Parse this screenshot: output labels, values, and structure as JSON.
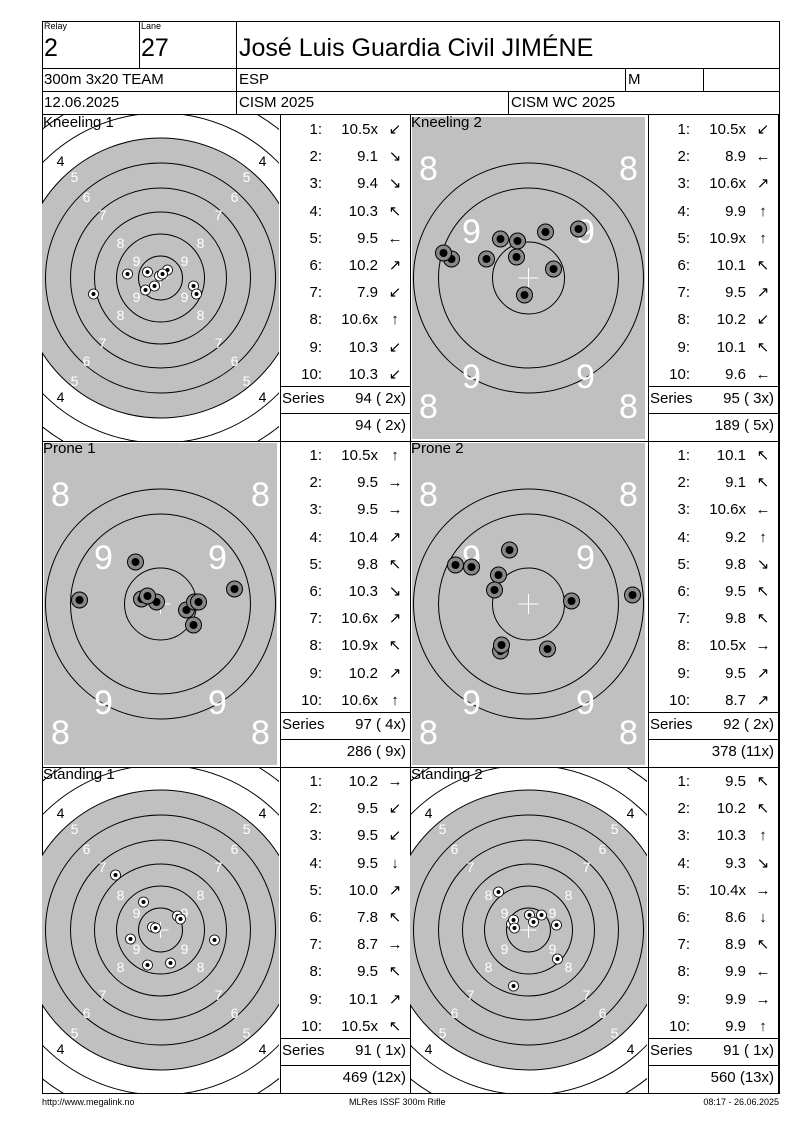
{
  "header": {
    "relay_label": "Relay",
    "relay": "2",
    "lane_label": "Lane",
    "lane": "27",
    "name": "José Luis Guardia Civil JIMÉNE",
    "event": "300m 3x20 TEAM",
    "nation": "ESP",
    "gender": "M",
    "date": "12.06.2025",
    "competition": "CISM 2025",
    "match": "CISM WC 2025"
  },
  "series_label": "Series",
  "panels": [
    {
      "title": "Kneeling 1",
      "shots": [
        {
          "no": "1:",
          "val": "10.5x",
          "arrow": "↙"
        },
        {
          "no": "2:",
          "val": "9.1",
          "arrow": "↘"
        },
        {
          "no": "3:",
          "val": "9.4",
          "arrow": "↘"
        },
        {
          "no": "4:",
          "val": "10.3",
          "arrow": "↖"
        },
        {
          "no": "5:",
          "val": "9.5",
          "arrow": "←"
        },
        {
          "no": "6:",
          "val": "10.2",
          "arrow": "↗"
        },
        {
          "no": "7:",
          "val": "7.9",
          "arrow": "↙"
        },
        {
          "no": "8:",
          "val": "10.6x",
          "arrow": "↑"
        },
        {
          "no": "9:",
          "val": "10.3",
          "arrow": "↙"
        },
        {
          "no": "10:",
          "val": "10.3",
          "arrow": "↙"
        }
      ],
      "series": "94 ( 2x)",
      "total": "94 ( 2x)"
    },
    {
      "title": "Kneeling 2",
      "shots": [
        {
          "no": "1:",
          "val": "10.5x",
          "arrow": "↙"
        },
        {
          "no": "2:",
          "val": "8.9",
          "arrow": "←"
        },
        {
          "no": "3:",
          "val": "10.6x",
          "arrow": "↗"
        },
        {
          "no": "4:",
          "val": "9.9",
          "arrow": "↑"
        },
        {
          "no": "5:",
          "val": "10.9x",
          "arrow": "↑"
        },
        {
          "no": "6:",
          "val": "10.1",
          "arrow": "↖"
        },
        {
          "no": "7:",
          "val": "9.5",
          "arrow": "↗"
        },
        {
          "no": "8:",
          "val": "10.2",
          "arrow": "↙"
        },
        {
          "no": "9:",
          "val": "10.1",
          "arrow": "↖"
        },
        {
          "no": "10:",
          "val": "9.6",
          "arrow": "←"
        }
      ],
      "series": "95 ( 3x)",
      "total": "189 ( 5x)"
    },
    {
      "title": "Prone 1",
      "shots": [
        {
          "no": "1:",
          "val": "10.5x",
          "arrow": "↑"
        },
        {
          "no": "2:",
          "val": "9.5",
          "arrow": "→"
        },
        {
          "no": "3:",
          "val": "9.5",
          "arrow": "→"
        },
        {
          "no": "4:",
          "val": "10.4",
          "arrow": "↗"
        },
        {
          "no": "5:",
          "val": "9.8",
          "arrow": "↖"
        },
        {
          "no": "6:",
          "val": "10.3",
          "arrow": "↘"
        },
        {
          "no": "7:",
          "val": "10.6x",
          "arrow": "↗"
        },
        {
          "no": "8:",
          "val": "10.9x",
          "arrow": "↖"
        },
        {
          "no": "9:",
          "val": "10.2",
          "arrow": "↗"
        },
        {
          "no": "10:",
          "val": "10.6x",
          "arrow": "↑"
        }
      ],
      "series": "97 ( 4x)",
      "total": "286 ( 9x)"
    },
    {
      "title": "Prone 2",
      "shots": [
        {
          "no": "1:",
          "val": "10.1",
          "arrow": "↖"
        },
        {
          "no": "2:",
          "val": "9.1",
          "arrow": "↖"
        },
        {
          "no": "3:",
          "val": "10.6x",
          "arrow": "←"
        },
        {
          "no": "4:",
          "val": "9.2",
          "arrow": "↑"
        },
        {
          "no": "5:",
          "val": "9.8",
          "arrow": "↘"
        },
        {
          "no": "6:",
          "val": "9.5",
          "arrow": "↖"
        },
        {
          "no": "7:",
          "val": "9.8",
          "arrow": "↖"
        },
        {
          "no": "8:",
          "val": "10.5x",
          "arrow": "→"
        },
        {
          "no": "9:",
          "val": "9.5",
          "arrow": "↗"
        },
        {
          "no": "10:",
          "val": "8.7",
          "arrow": "↗"
        }
      ],
      "series": "92 ( 2x)",
      "total": "378 (11x)"
    },
    {
      "title": "Standing 1",
      "shots": [
        {
          "no": "1:",
          "val": "10.2",
          "arrow": "→"
        },
        {
          "no": "2:",
          "val": "9.5",
          "arrow": "↙"
        },
        {
          "no": "3:",
          "val": "9.5",
          "arrow": "↙"
        },
        {
          "no": "4:",
          "val": "9.5",
          "arrow": "↓"
        },
        {
          "no": "5:",
          "val": "10.0",
          "arrow": "↗"
        },
        {
          "no": "6:",
          "val": "7.8",
          "arrow": "↖"
        },
        {
          "no": "7:",
          "val": "8.7",
          "arrow": "→"
        },
        {
          "no": "8:",
          "val": "9.5",
          "arrow": "↖"
        },
        {
          "no": "9:",
          "val": "10.1",
          "arrow": "↗"
        },
        {
          "no": "10:",
          "val": "10.5x",
          "arrow": "↖"
        }
      ],
      "series": "91 ( 1x)",
      "total": "469 (12x)"
    },
    {
      "title": "Standing 2",
      "shots": [
        {
          "no": "1:",
          "val": "9.5",
          "arrow": "↖"
        },
        {
          "no": "2:",
          "val": "10.2",
          "arrow": "↖"
        },
        {
          "no": "3:",
          "val": "10.3",
          "arrow": "↑"
        },
        {
          "no": "4:",
          "val": "9.3",
          "arrow": "↘"
        },
        {
          "no": "5:",
          "val": "10.4x",
          "arrow": "→"
        },
        {
          "no": "6:",
          "val": "8.6",
          "arrow": "↓"
        },
        {
          "no": "7:",
          "val": "8.9",
          "arrow": "↖"
        },
        {
          "no": "8:",
          "val": "9.9",
          "arrow": "←"
        },
        {
          "no": "9:",
          "val": "9.9",
          "arrow": "→"
        },
        {
          "no": "10:",
          "val": "9.9",
          "arrow": "↑"
        }
      ],
      "series": "91 ( 1x)",
      "total": "560 (13x)"
    }
  ],
  "targets": {
    "standard_labels": [
      "4",
      "5",
      "6",
      "7",
      "8",
      "9"
    ],
    "zoom_labels": [
      "8",
      "9"
    ],
    "ring_color": "#000000",
    "black_color": "#c0c0c0",
    "shot_color": "#000000"
  },
  "footer": {
    "left": "http://www.megalink.no",
    "center": "MLRes ISSF 300m Rifle",
    "right": "08:17 - 26.06.2025"
  }
}
